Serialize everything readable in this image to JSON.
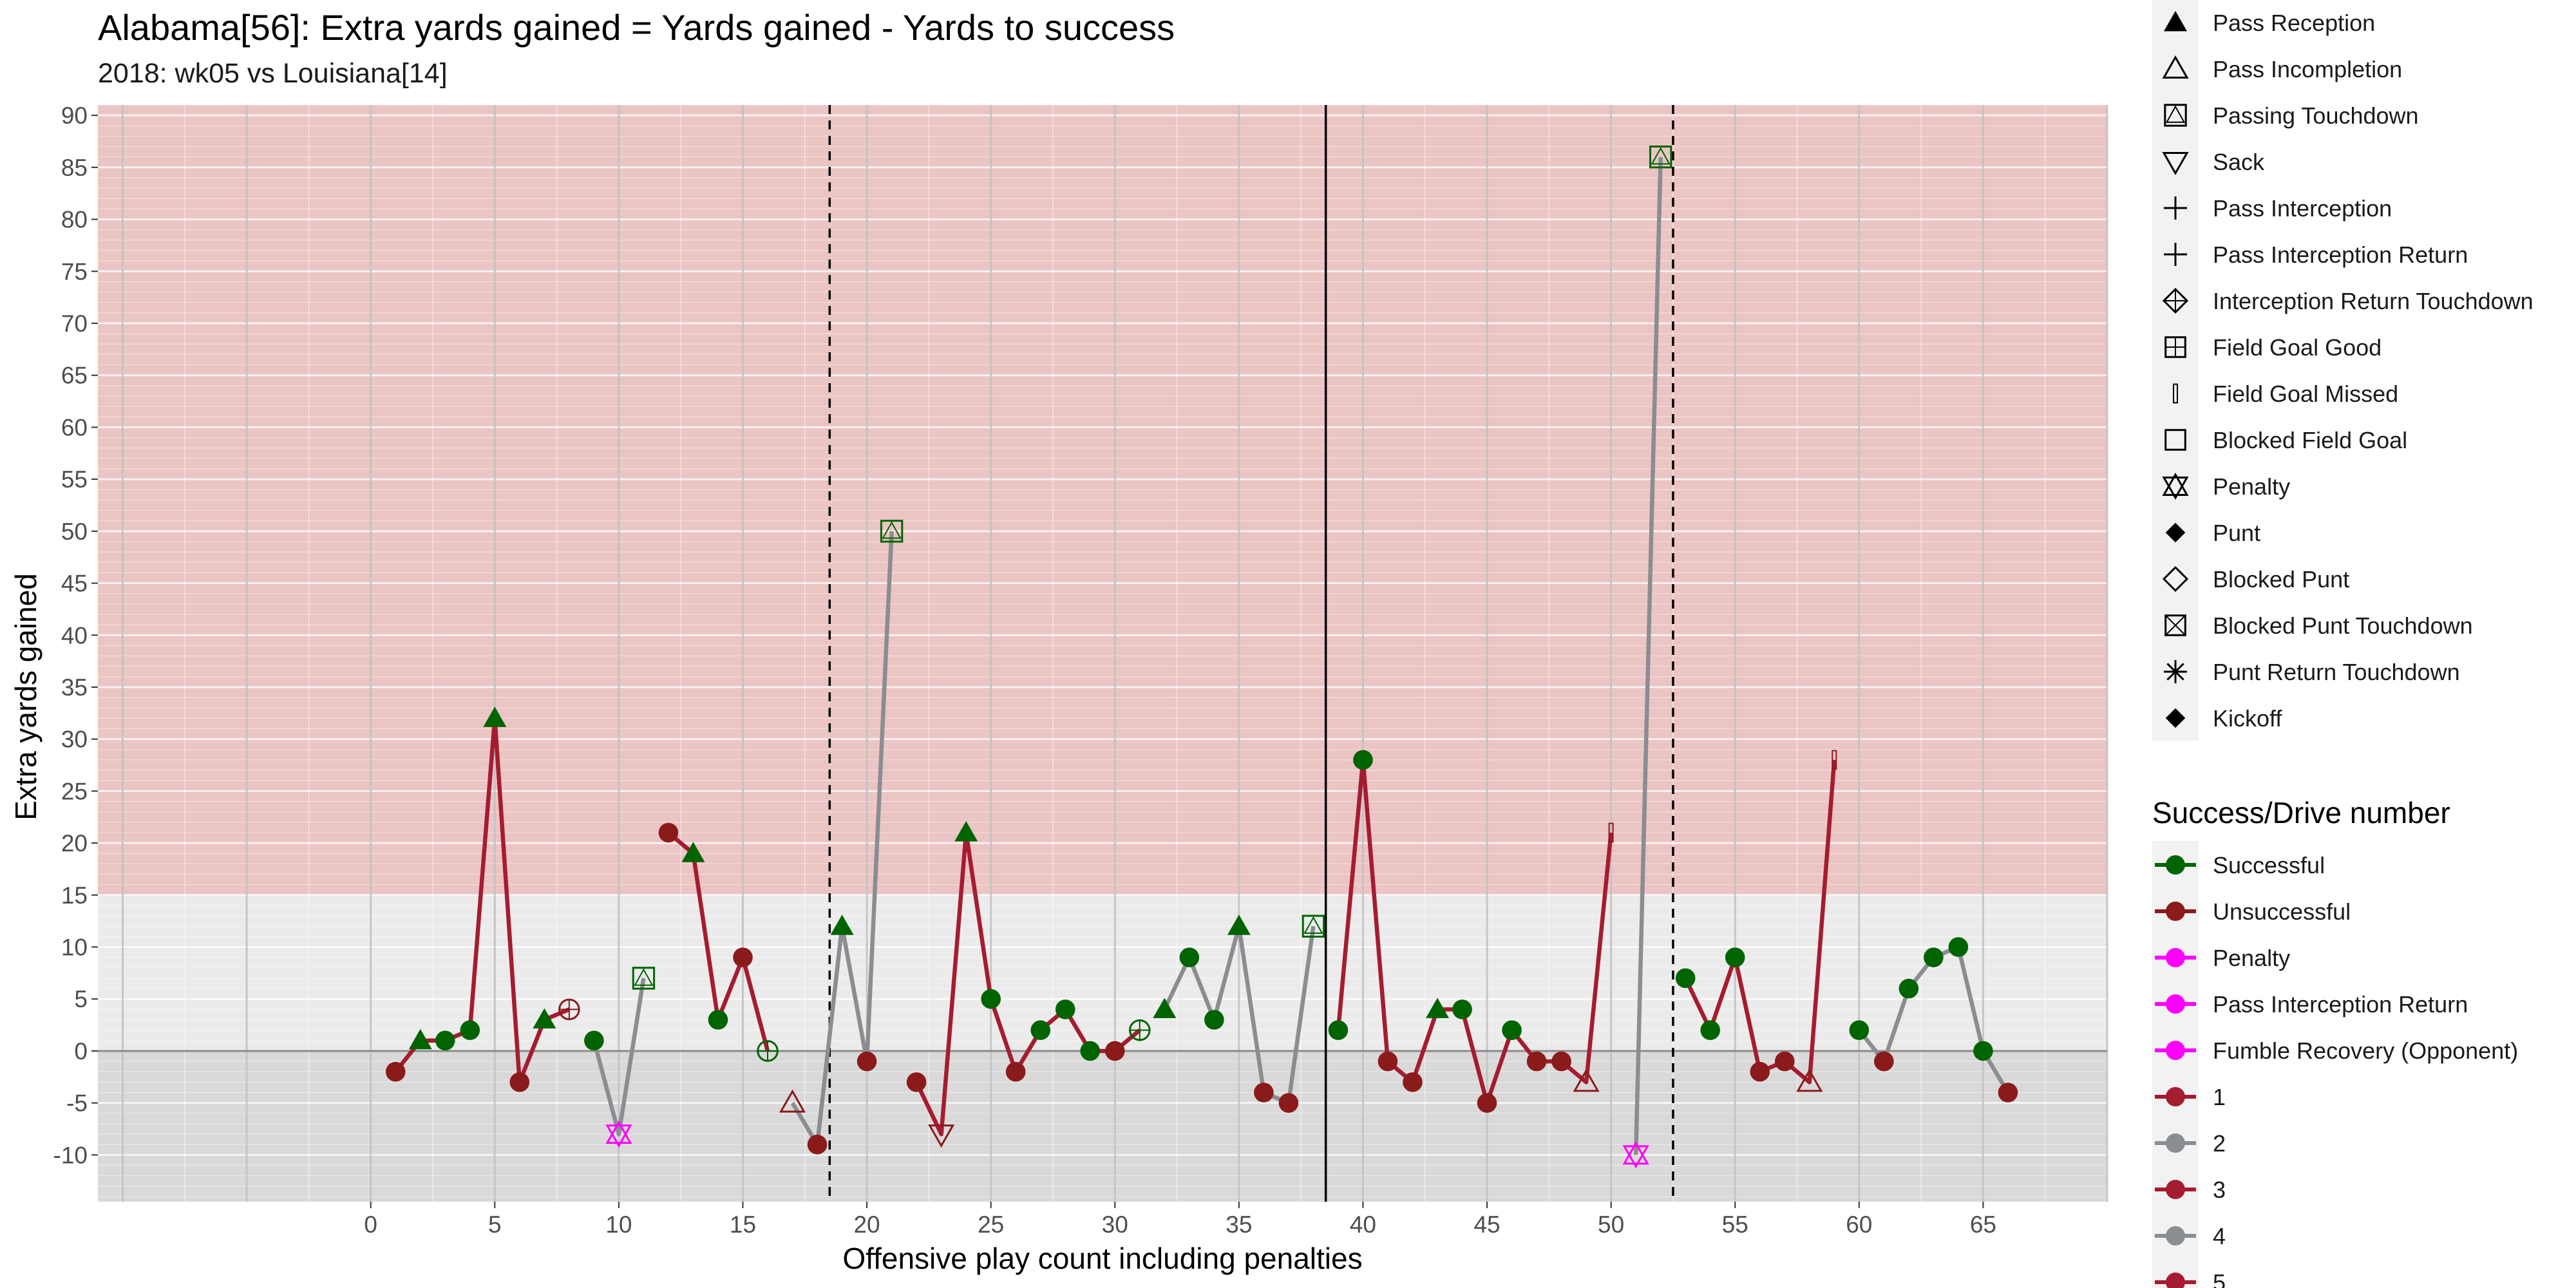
{
  "chart_data": {
    "type": "line",
    "title": "Alabama[56]: Extra yards gained = Yards gained - Yards to success",
    "subtitle": "2018: wk05 vs Louisiana[14]",
    "xlabel": "Offensive play count including penalties",
    "ylabel": "Extra yards gained",
    "xlim": [
      -11,
      70
    ],
    "ylim": [
      -14.5,
      91
    ],
    "x_ticks": [
      0,
      5,
      10,
      15,
      20,
      25,
      30,
      35,
      40,
      45,
      50,
      55,
      60,
      65
    ],
    "y_ticks": [
      -10,
      -5,
      0,
      5,
      10,
      15,
      20,
      25,
      30,
      35,
      40,
      45,
      50,
      55,
      60,
      65,
      70,
      75,
      80,
      85,
      90
    ],
    "x_tick_labels": [
      "0",
      "5",
      "10",
      "15",
      "20",
      "25",
      "30",
      "35",
      "40",
      "45",
      "50",
      "55",
      "60",
      "65"
    ],
    "y_tick_labels": [
      "-10",
      "-5",
      "0",
      "5",
      "10",
      "15",
      "20",
      "25",
      "30",
      "35",
      "40",
      "45",
      "50",
      "55",
      "60",
      "65",
      "70",
      "75",
      "80",
      "85",
      "90"
    ],
    "grid": true,
    "background_bands": [
      {
        "from": 15,
        "to": 91,
        "color": "#ebc4c4"
      },
      {
        "from": 0,
        "to": 15,
        "color": "#ebebeb"
      },
      {
        "from": -14.5,
        "to": 0,
        "color": "#d9d9d9"
      }
    ],
    "reference_lines": [
      {
        "x": 18.5,
        "style": "dashed"
      },
      {
        "x": 38.5,
        "style": "solid"
      },
      {
        "x": 52.5,
        "style": "dashed"
      }
    ],
    "colors": {
      "successful": "#006400",
      "unsuccessful": "#8b1a1a",
      "penalty": "#ff00ff",
      "drive_odd": "#a51c30",
      "drive_even": "#8a8d91"
    },
    "drives": [
      {
        "drive": 1,
        "x": [
          1,
          2,
          3,
          4,
          5,
          6,
          7,
          8
        ],
        "y": [
          -2,
          1,
          1,
          2,
          32,
          -3,
          3,
          4
        ]
      },
      {
        "drive": 2,
        "x": [
          9,
          10,
          11
        ],
        "y": [
          1,
          -8,
          7
        ]
      },
      {
        "drive": 3,
        "x": [
          12,
          13,
          14,
          15,
          16
        ],
        "y": [
          21,
          19,
          3,
          9,
          0
        ]
      },
      {
        "drive": 4,
        "x": [
          17,
          18,
          19,
          20,
          21
        ],
        "y": [
          -5,
          -9,
          12,
          -1,
          50
        ]
      },
      {
        "drive": 5,
        "x": [
          22,
          23,
          24,
          25,
          26,
          27,
          28,
          29,
          30,
          31
        ],
        "y": [
          -3,
          -8,
          21,
          5,
          -2,
          2,
          4,
          0,
          0,
          2
        ]
      },
      {
        "drive": 6,
        "x": [
          32,
          33,
          34,
          35,
          36,
          37,
          38
        ],
        "y": [
          4,
          9,
          3,
          12,
          -4,
          -5,
          12
        ]
      },
      {
        "drive": 7,
        "x": [
          39,
          40,
          41,
          42,
          43,
          44,
          45,
          46,
          47,
          48,
          49,
          50
        ],
        "y": [
          2,
          28,
          -1,
          -3,
          4,
          4,
          -5,
          2,
          -1,
          -1,
          -3,
          21
        ]
      },
      {
        "drive": 8,
        "x": [
          51,
          52
        ],
        "y": [
          -10,
          86
        ]
      },
      {
        "drive": 9,
        "x": [
          53,
          54,
          55,
          56,
          57,
          58,
          59
        ],
        "y": [
          7,
          2,
          9,
          -2,
          -1,
          -3,
          28
        ]
      },
      {
        "drive": 10,
        "x": [
          60,
          61,
          62,
          63,
          64,
          65,
          66
        ],
        "y": [
          2,
          -1,
          6,
          9,
          10,
          0,
          -4
        ]
      }
    ],
    "plays": [
      {
        "x": 1,
        "y": -2,
        "outcome": "unsuccessful",
        "shape": "circle"
      },
      {
        "x": 2,
        "y": 1,
        "outcome": "successful",
        "shape": "triangle"
      },
      {
        "x": 3,
        "y": 1,
        "outcome": "successful",
        "shape": "circle"
      },
      {
        "x": 4,
        "y": 2,
        "outcome": "successful",
        "shape": "circle"
      },
      {
        "x": 5,
        "y": 32,
        "outcome": "successful",
        "shape": "triangle"
      },
      {
        "x": 6,
        "y": -3,
        "outcome": "unsuccessful",
        "shape": "circle"
      },
      {
        "x": 7,
        "y": 3,
        "outcome": "successful",
        "shape": "triangle"
      },
      {
        "x": 8,
        "y": 4,
        "outcome": "unsuccessful",
        "shape": "circle-plus"
      },
      {
        "x": 9,
        "y": 1,
        "outcome": "successful",
        "shape": "circle"
      },
      {
        "x": 10,
        "y": -8,
        "outcome": "penalty",
        "shape": "star-of-david"
      },
      {
        "x": 11,
        "y": 7,
        "outcome": "successful",
        "shape": "square-triangle"
      },
      {
        "x": 12,
        "y": 21,
        "outcome": "unsuccessful",
        "shape": "circle"
      },
      {
        "x": 13,
        "y": 19,
        "outcome": "successful",
        "shape": "triangle"
      },
      {
        "x": 14,
        "y": 3,
        "outcome": "successful",
        "shape": "circle"
      },
      {
        "x": 15,
        "y": 9,
        "outcome": "unsuccessful",
        "shape": "circle"
      },
      {
        "x": 16,
        "y": 0,
        "outcome": "successful",
        "shape": "circle-plus"
      },
      {
        "x": 17,
        "y": -5,
        "outcome": "unsuccessful",
        "shape": "triangle-open"
      },
      {
        "x": 18,
        "y": -9,
        "outcome": "unsuccessful",
        "shape": "circle"
      },
      {
        "x": 19,
        "y": 12,
        "outcome": "successful",
        "shape": "triangle"
      },
      {
        "x": 20,
        "y": -1,
        "outcome": "unsuccessful",
        "shape": "circle"
      },
      {
        "x": 21,
        "y": 50,
        "outcome": "successful",
        "shape": "square-triangle"
      },
      {
        "x": 22,
        "y": -3,
        "outcome": "unsuccessful",
        "shape": "circle"
      },
      {
        "x": 23,
        "y": -8,
        "outcome": "unsuccessful",
        "shape": "triangle-down-open"
      },
      {
        "x": 24,
        "y": 21,
        "outcome": "successful",
        "shape": "triangle"
      },
      {
        "x": 25,
        "y": 5,
        "outcome": "successful",
        "shape": "circle"
      },
      {
        "x": 26,
        "y": -2,
        "outcome": "unsuccessful",
        "shape": "circle"
      },
      {
        "x": 27,
        "y": 2,
        "outcome": "successful",
        "shape": "circle"
      },
      {
        "x": 28,
        "y": 4,
        "outcome": "successful",
        "shape": "circle"
      },
      {
        "x": 29,
        "y": 0,
        "outcome": "successful",
        "shape": "circle"
      },
      {
        "x": 30,
        "y": 0,
        "outcome": "unsuccessful",
        "shape": "circle"
      },
      {
        "x": 31,
        "y": 2,
        "outcome": "successful",
        "shape": "circle-plus"
      },
      {
        "x": 32,
        "y": 4,
        "outcome": "successful",
        "shape": "triangle"
      },
      {
        "x": 33,
        "y": 9,
        "outcome": "successful",
        "shape": "circle"
      },
      {
        "x": 34,
        "y": 3,
        "outcome": "successful",
        "shape": "circle"
      },
      {
        "x": 35,
        "y": 12,
        "outcome": "successful",
        "shape": "triangle"
      },
      {
        "x": 36,
        "y": -4,
        "outcome": "unsuccessful",
        "shape": "circle"
      },
      {
        "x": 37,
        "y": -5,
        "outcome": "unsuccessful",
        "shape": "circle"
      },
      {
        "x": 38,
        "y": 12,
        "outcome": "successful",
        "shape": "square-triangle"
      },
      {
        "x": 39,
        "y": 2,
        "outcome": "successful",
        "shape": "circle"
      },
      {
        "x": 40,
        "y": 28,
        "outcome": "successful",
        "shape": "circle"
      },
      {
        "x": 41,
        "y": -1,
        "outcome": "unsuccessful",
        "shape": "circle"
      },
      {
        "x": 42,
        "y": -3,
        "outcome": "unsuccessful",
        "shape": "circle"
      },
      {
        "x": 43,
        "y": 4,
        "outcome": "successful",
        "shape": "triangle"
      },
      {
        "x": 44,
        "y": 4,
        "outcome": "successful",
        "shape": "circle"
      },
      {
        "x": 45,
        "y": -5,
        "outcome": "unsuccessful",
        "shape": "circle"
      },
      {
        "x": 46,
        "y": 2,
        "outcome": "successful",
        "shape": "circle"
      },
      {
        "x": 47,
        "y": -1,
        "outcome": "unsuccessful",
        "shape": "circle"
      },
      {
        "x": 48,
        "y": -1,
        "outcome": "unsuccessful",
        "shape": "circle"
      },
      {
        "x": 49,
        "y": -3,
        "outcome": "unsuccessful",
        "shape": "triangle-open"
      },
      {
        "x": 50,
        "y": 21,
        "outcome": "unsuccessful",
        "shape": "bar"
      },
      {
        "x": 51,
        "y": -10,
        "outcome": "penalty",
        "shape": "star-of-david"
      },
      {
        "x": 52,
        "y": 86,
        "outcome": "successful",
        "shape": "square-triangle"
      },
      {
        "x": 53,
        "y": 7,
        "outcome": "successful",
        "shape": "circle"
      },
      {
        "x": 54,
        "y": 2,
        "outcome": "successful",
        "shape": "circle"
      },
      {
        "x": 55,
        "y": 9,
        "outcome": "successful",
        "shape": "circle"
      },
      {
        "x": 56,
        "y": -2,
        "outcome": "unsuccessful",
        "shape": "circle"
      },
      {
        "x": 57,
        "y": -1,
        "outcome": "unsuccessful",
        "shape": "circle"
      },
      {
        "x": 58,
        "y": -3,
        "outcome": "unsuccessful",
        "shape": "triangle-open"
      },
      {
        "x": 59,
        "y": 28,
        "outcome": "unsuccessful",
        "shape": "bar"
      },
      {
        "x": 60,
        "y": 2,
        "outcome": "successful",
        "shape": "circle"
      },
      {
        "x": 61,
        "y": -1,
        "outcome": "unsuccessful",
        "shape": "circle"
      },
      {
        "x": 62,
        "y": 6,
        "outcome": "successful",
        "shape": "circle"
      },
      {
        "x": 63,
        "y": 9,
        "outcome": "successful",
        "shape": "circle"
      },
      {
        "x": 64,
        "y": 10,
        "outcome": "successful",
        "shape": "circle"
      },
      {
        "x": 65,
        "y": 0,
        "outcome": "successful",
        "shape": "circle"
      },
      {
        "x": 66,
        "y": -4,
        "outcome": "unsuccessful",
        "shape": "circle"
      }
    ],
    "legend_shapes": [
      {
        "label": "Pass Reception",
        "shape": "triangle"
      },
      {
        "label": "Pass Incompletion",
        "shape": "triangle-open"
      },
      {
        "label": "Passing Touchdown",
        "shape": "square-triangle"
      },
      {
        "label": "Sack",
        "shape": "triangle-down-open"
      },
      {
        "label": "Pass Interception",
        "shape": "plus"
      },
      {
        "label": "Pass Interception Return",
        "shape": "plus"
      },
      {
        "label": "Interception Return Touchdown",
        "shape": "diamond-plus"
      },
      {
        "label": "Field Goal Good",
        "shape": "square-plus"
      },
      {
        "label": "Field Goal Missed",
        "shape": "bar"
      },
      {
        "label": "Blocked Field Goal",
        "shape": "square-open"
      },
      {
        "label": "Penalty",
        "shape": "star-of-david"
      },
      {
        "label": "Punt",
        "shape": "diamond"
      },
      {
        "label": "Blocked Punt",
        "shape": "diamond-open"
      },
      {
        "label": "Blocked Punt Touchdown",
        "shape": "square-x"
      },
      {
        "label": "Punt Return Touchdown",
        "shape": "asterisk"
      },
      {
        "label": "Kickoff",
        "shape": "diamond"
      }
    ],
    "legend_success_title": "Success/Drive number",
    "legend_success": [
      {
        "label": "Successful",
        "color": "#006400"
      },
      {
        "label": "Unsuccessful",
        "color": "#8b1a1a"
      },
      {
        "label": "Penalty",
        "color": "#ff00ff"
      },
      {
        "label": "Pass Interception Return",
        "color": "#ff00ff"
      },
      {
        "label": "Fumble Recovery (Opponent)",
        "color": "#ff00ff"
      },
      {
        "label": "1",
        "color": "#a51c30"
      },
      {
        "label": "2",
        "color": "#8a8d91"
      },
      {
        "label": "3",
        "color": "#a51c30"
      },
      {
        "label": "4",
        "color": "#8a8d91"
      },
      {
        "label": "5",
        "color": "#a51c30"
      }
    ]
  }
}
